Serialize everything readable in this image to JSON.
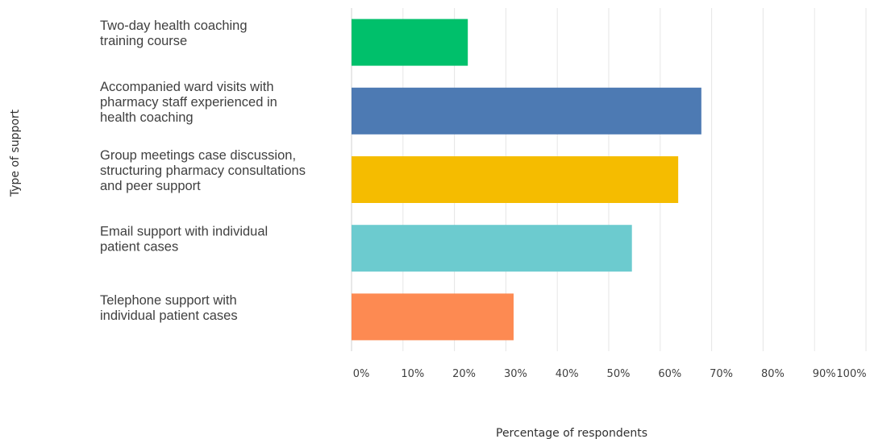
{
  "chart_data": {
    "type": "bar",
    "orientation": "horizontal",
    "title": "",
    "xlabel": "Percentage of respondents",
    "ylabel": "Type of support",
    "categories": [
      [
        "Two-day health coaching",
        "training course"
      ],
      [
        "Accompanied ward visits with",
        "pharmacy staff experienced in",
        "health coaching"
      ],
      [
        "Group meetings case discussion,",
        "structuring pharmacy consultations",
        "and peer support"
      ],
      [
        "Email support with individual",
        "patient cases"
      ],
      [
        "Telephone support with",
        "individual patient cases"
      ]
    ],
    "values": [
      22.6,
      68.0,
      63.5,
      54.5,
      31.5
    ],
    "colors": [
      "#00c06b",
      "#4d7ab3",
      "#f5bc00",
      "#6ccbcf",
      "#fd8a52"
    ],
    "xlim": [
      0,
      100
    ],
    "xticks": [
      "0%",
      "10%",
      "20%",
      "30%",
      "40%",
      "50%",
      "60%",
      "70%",
      "80%",
      "90%",
      "100%"
    ],
    "grid": true,
    "legend": "none"
  }
}
